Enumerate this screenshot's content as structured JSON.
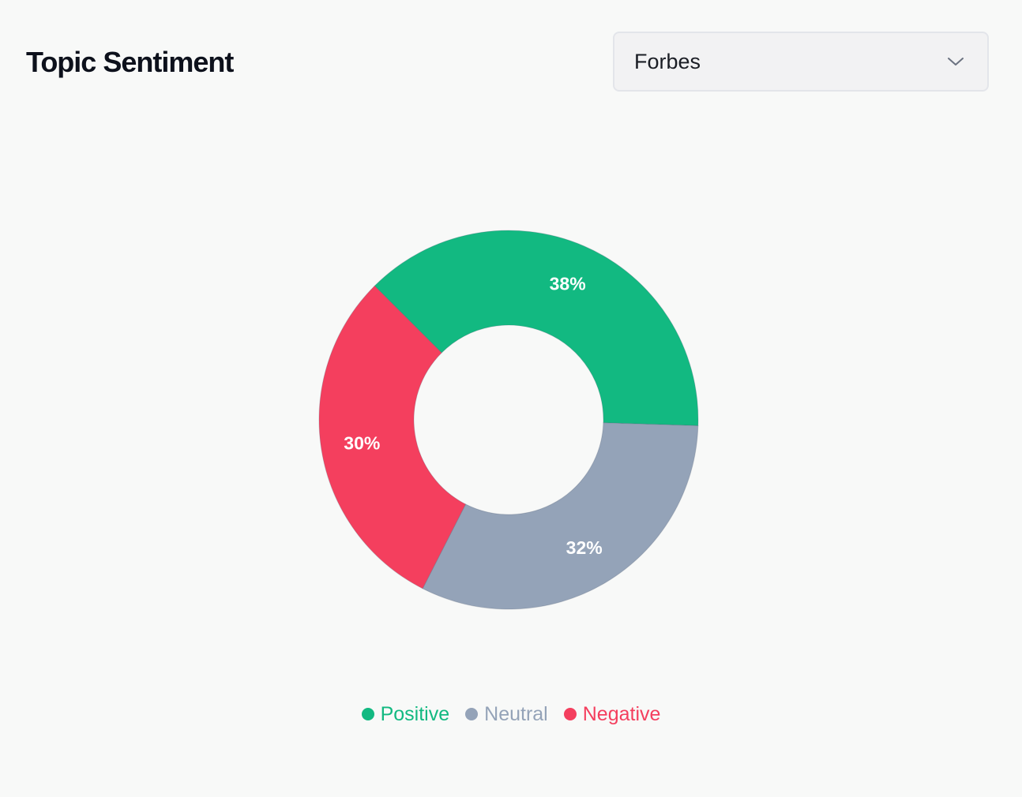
{
  "header": {
    "title": "Topic Sentiment"
  },
  "source_select": {
    "selected": "Forbes",
    "icon": "chevron-down-icon"
  },
  "chart_data": {
    "type": "pie",
    "variant": "donut",
    "title": "",
    "categories": [
      "Positive",
      "Neutral",
      "Negative"
    ],
    "values": [
      38,
      32,
      30
    ],
    "labels": [
      "38%",
      "32%",
      "30%"
    ],
    "colors": [
      "#12b981",
      "#94a3b8",
      "#f43f5e"
    ],
    "legend": {
      "position": "bottom",
      "entries": [
        "Positive",
        "Neutral",
        "Negative"
      ]
    }
  }
}
